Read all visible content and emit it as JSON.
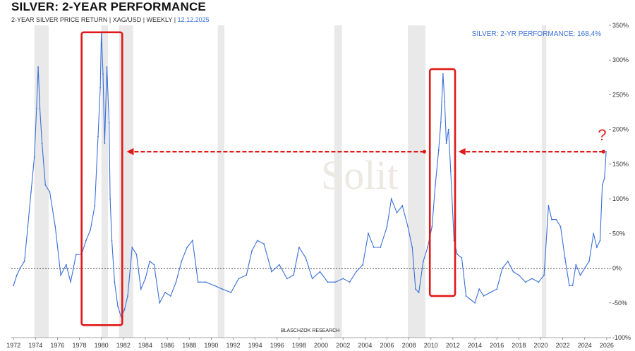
{
  "header": {
    "title": "SILVER: 2-YEAR PERFORMANCE",
    "subtitle": "2-YEAR SILVER PRICE RETURN | XAG/USD | WEEKLY | ",
    "date": "12.12.2025",
    "performance_label": "SILVER: 2-YR PERFORMANCE: 168,4%"
  },
  "credit": "BLASCHZOK  RESEARCH",
  "watermark": "Solit",
  "annotation": {
    "question_mark": "?"
  },
  "colors": {
    "line": "#3a6fd8",
    "highlight": "#e01818",
    "recession": "#e9e9e9",
    "zero_line": "#333333"
  },
  "chart_data": {
    "type": "line",
    "title": "SILVER: 2-YEAR PERFORMANCE",
    "xlabel": "",
    "ylabel": "",
    "xlim": [
      1971.8,
      2026.2
    ],
    "ylim": [
      -100,
      350
    ],
    "y_ticks": [
      -100,
      -50,
      0,
      50,
      100,
      150,
      200,
      250,
      300,
      350
    ],
    "y_tick_labels": [
      "-100%",
      "-50%",
      "0%",
      "50%",
      "100%",
      "150%",
      "200%",
      "250%",
      "300%",
      "350%"
    ],
    "x_ticks": [
      1972,
      1974,
      1976,
      1978,
      1980,
      1982,
      1984,
      1986,
      1988,
      1990,
      1992,
      1994,
      1996,
      1998,
      2000,
      2002,
      2004,
      2006,
      2008,
      2010,
      2012,
      2014,
      2016,
      2018,
      2020,
      2022,
      2024,
      2026
    ],
    "recession_bands": [
      [
        1973.9,
        1975.2
      ],
      [
        1980.0,
        1980.6
      ],
      [
        1981.6,
        1982.9
      ],
      [
        1990.6,
        1991.2
      ],
      [
        2001.2,
        2001.9
      ],
      [
        2007.9,
        2009.5
      ],
      [
        2020.1,
        2020.5
      ]
    ],
    "series": [
      {
        "name": "2-year silver price return (%)",
        "x": [
          1972.0,
          1972.3,
          1972.6,
          1973.0,
          1973.3,
          1973.6,
          1973.9,
          1974.1,
          1974.25,
          1974.4,
          1974.6,
          1974.9,
          1975.3,
          1975.8,
          1976.3,
          1976.8,
          1977.2,
          1977.7,
          1978.2,
          1978.6,
          1979.0,
          1979.4,
          1979.7,
          1979.9,
          1980.0,
          1980.15,
          1980.3,
          1980.5,
          1980.7,
          1980.8,
          1980.95,
          1981.2,
          1981.5,
          1981.8,
          1982.1,
          1982.4,
          1982.8,
          1983.2,
          1983.6,
          1984.0,
          1984.4,
          1984.8,
          1985.3,
          1985.8,
          1986.3,
          1986.8,
          1987.3,
          1987.8,
          1988.3,
          1988.8,
          1989.5,
          1990.3,
          1991.0,
          1991.8,
          1992.5,
          1993.2,
          1993.7,
          1994.2,
          1994.8,
          1995.5,
          1996.2,
          1996.9,
          1997.5,
          1998.0,
          1998.6,
          1999.2,
          1999.9,
          2000.6,
          2001.3,
          2002.0,
          2002.6,
          2003.2,
          2003.8,
          2004.3,
          2004.8,
          2005.4,
          2006.0,
          2006.4,
          2006.9,
          2007.4,
          2007.9,
          2008.3,
          2008.6,
          2008.9,
          2009.3,
          2009.7,
          2010.1,
          2010.4,
          2010.7,
          2010.9,
          2011.1,
          2011.25,
          2011.4,
          2011.6,
          2011.8,
          2012.1,
          2012.4,
          2012.8,
          2013.2,
          2013.6,
          2014.0,
          2014.4,
          2014.8,
          2015.4,
          2016.0,
          2016.5,
          2017.0,
          2017.5,
          2018.0,
          2018.6,
          2019.2,
          2019.8,
          2020.3,
          2020.7,
          2021.0,
          2021.4,
          2021.8,
          2022.2,
          2022.6,
          2022.9,
          2023.2,
          2023.6,
          2024.0,
          2024.4,
          2024.8,
          2025.1,
          2025.4,
          2025.6,
          2025.8,
          2025.95
        ],
        "values": [
          -25,
          -10,
          0,
          10,
          60,
          110,
          160,
          230,
          290,
          230,
          180,
          120,
          110,
          60,
          -10,
          5,
          -20,
          20,
          20,
          40,
          55,
          90,
          190,
          260,
          340,
          280,
          180,
          290,
          210,
          100,
          40,
          -20,
          -55,
          -70,
          -60,
          -40,
          30,
          20,
          -30,
          -15,
          10,
          5,
          -50,
          -35,
          -40,
          -20,
          10,
          30,
          40,
          -20,
          -20,
          -25,
          -30,
          -35,
          -15,
          -10,
          25,
          40,
          35,
          -5,
          5,
          -15,
          -10,
          30,
          15,
          -15,
          -5,
          -20,
          -20,
          -15,
          -20,
          -5,
          5,
          50,
          30,
          30,
          60,
          100,
          80,
          90,
          60,
          30,
          -30,
          -35,
          10,
          30,
          60,
          120,
          170,
          210,
          280,
          240,
          180,
          200,
          140,
          40,
          20,
          15,
          -40,
          -45,
          -50,
          -30,
          -40,
          -35,
          -30,
          0,
          10,
          -5,
          -10,
          -20,
          -15,
          -20,
          -10,
          90,
          70,
          70,
          60,
          15,
          -25,
          -25,
          5,
          -10,
          0,
          10,
          50,
          30,
          40,
          120,
          130,
          168
        ]
      }
    ],
    "annotations": [
      {
        "type": "highlight-box",
        "x_range": [
          1978.2,
          1981.9
        ],
        "y_range": [
          -82,
          340
        ]
      },
      {
        "type": "highlight-box",
        "x_range": [
          2009.9,
          2012.2
        ],
        "y_range": [
          -40,
          287
        ]
      },
      {
        "type": "dashed-arrow",
        "from": [
          2009.4,
          168
        ],
        "to": [
          1982.3,
          168
        ]
      },
      {
        "type": "dashed-arrow",
        "from": [
          2025.7,
          168
        ],
        "to": [
          2012.5,
          168
        ]
      }
    ]
  }
}
